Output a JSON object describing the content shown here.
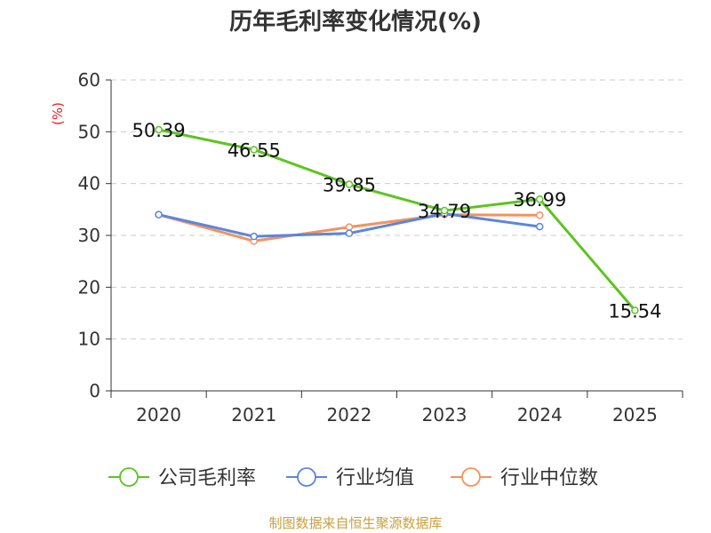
{
  "title": "历年毛利率变化情况(%)",
  "source": "制图数据来自恒生聚源数据库",
  "chart_data": {
    "type": "line",
    "title": "历年毛利率变化情况(%)",
    "ylabel": "(%)",
    "ylim": [
      0,
      60
    ],
    "yticks": [
      0,
      10,
      20,
      30,
      40,
      50,
      60
    ],
    "grid": true,
    "legend_position": "bottom",
    "categories": [
      "2020",
      "2021",
      "2022",
      "2023",
      "2024",
      "2025"
    ],
    "series": [
      {
        "name": "公司毛利率",
        "color": "#5cc421",
        "values": [
          50.39,
          46.55,
          39.85,
          34.79,
          36.99,
          15.54
        ],
        "show_labels": true
      },
      {
        "name": "行业均值",
        "color": "#5b86dc",
        "values": [
          34.0,
          29.8,
          30.4,
          34.2,
          31.7,
          null
        ],
        "show_labels": false
      },
      {
        "name": "行业中位数",
        "color": "#f4925d",
        "values": [
          34.0,
          28.9,
          31.6,
          34.0,
          33.9,
          null
        ],
        "show_labels": false
      }
    ],
    "data_labels": [
      "50.39",
      "46.55",
      "39.85",
      "34.79",
      "36.99",
      "15.54"
    ]
  }
}
